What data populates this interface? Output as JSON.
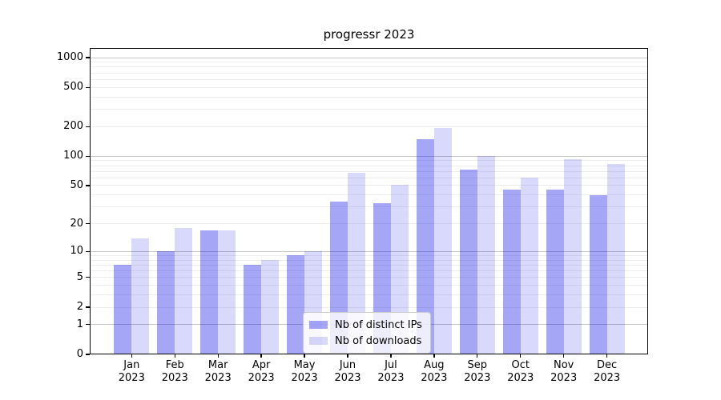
{
  "chart_data": {
    "type": "bar",
    "title": "progressr 2023",
    "x_labels": [
      [
        "Jan",
        "2023"
      ],
      [
        "Feb",
        "2023"
      ],
      [
        "Mar",
        "2023"
      ],
      [
        "Apr",
        "2023"
      ],
      [
        "May",
        "2023"
      ],
      [
        "Jun",
        "2023"
      ],
      [
        "Jul",
        "2023"
      ],
      [
        "Aug",
        "2023"
      ],
      [
        "Sep",
        "2023"
      ],
      [
        "Oct",
        "2023"
      ],
      [
        "Nov",
        "2023"
      ],
      [
        "Dec",
        "2023"
      ]
    ],
    "series": [
      {
        "name": "Nb of distinct IPs",
        "color": "rgba(0,0,230,0.35)",
        "values": [
          7,
          10,
          17,
          7,
          9,
          34,
          33,
          150,
          73,
          45,
          45,
          40
        ]
      },
      {
        "name": "Nb of downloads",
        "color": "rgba(0,0,230,0.15)",
        "values": [
          14,
          18,
          17,
          8,
          10,
          68,
          51,
          195,
          101,
          60,
          93,
          83
        ]
      }
    ],
    "y_axis": {
      "scale": "log1p",
      "ticks": [
        0,
        1,
        2,
        5,
        10,
        20,
        50,
        100,
        200,
        500,
        1000
      ],
      "max_tick": 1000
    },
    "grid": {
      "on": true,
      "major_at": [
        1,
        10,
        100,
        1000
      ],
      "major_color": "#c6c6c6",
      "minor_color": "#ededed"
    },
    "legend": {
      "position": "lower center",
      "bg": "rgba(255,255,255,0.8)",
      "border_color": "#cccccc"
    }
  }
}
